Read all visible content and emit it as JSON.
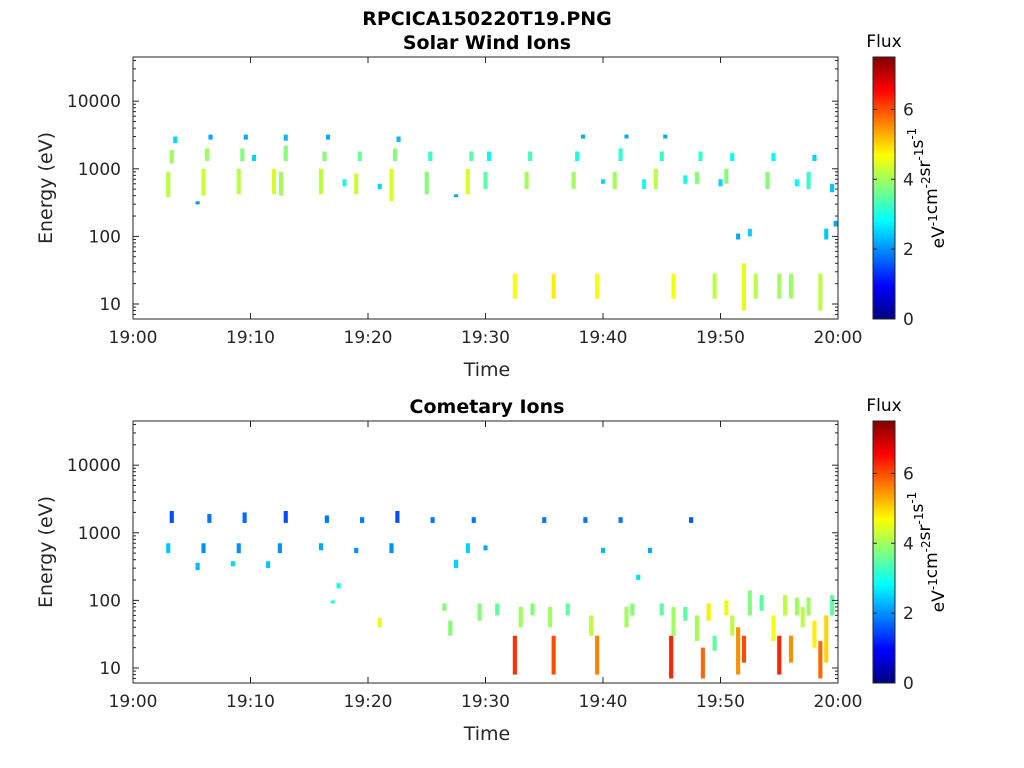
{
  "figure": {
    "title": "RPCICA150220T19.PNG"
  },
  "colormap": [
    "#00007f",
    "#0000ff",
    "#007fff",
    "#00ffff",
    "#7fff7f",
    "#ffff00",
    "#ff7f00",
    "#ff0000",
    "#7f0000"
  ],
  "chart_data": [
    {
      "type": "heatmap",
      "title": "Solar Wind Ions",
      "xlabel": "Time",
      "ylabel": "Energy (eV)",
      "yscale": "log",
      "ylim": [
        6,
        45000
      ],
      "xlim": [
        "19:00",
        "20:00"
      ],
      "x_ticks": [
        "19:00",
        "19:10",
        "19:20",
        "19:30",
        "19:40",
        "19:50",
        "20:00"
      ],
      "y_ticks": [
        "10",
        "100",
        "1000",
        "10000"
      ],
      "colorbar": {
        "title": "Flux",
        "label": "eV-1cm-2sr-1s-1",
        "range": [
          0,
          7.5
        ],
        "ticks": [
          "0",
          "2",
          "4",
          "6"
        ]
      },
      "cells": [
        {
          "t": 3.0,
          "e": [
            380,
            900
          ],
          "f": 4.2
        },
        {
          "t": 3.3,
          "e": [
            1200,
            1900
          ],
          "f": 4.0
        },
        {
          "t": 3.6,
          "e": [
            2400,
            3000
          ],
          "f": 2.5
        },
        {
          "t": 5.5,
          "e": [
            300,
            330
          ],
          "f": 2.0
        },
        {
          "t": 6.0,
          "e": [
            400,
            1000
          ],
          "f": 4.3
        },
        {
          "t": 6.3,
          "e": [
            1300,
            2000
          ],
          "f": 4.0
        },
        {
          "t": 6.6,
          "e": [
            2700,
            3200
          ],
          "f": 2.2
        },
        {
          "t": 9.0,
          "e": [
            420,
            1000
          ],
          "f": 4.2
        },
        {
          "t": 9.3,
          "e": [
            1300,
            2000
          ],
          "f": 3.8
        },
        {
          "t": 9.6,
          "e": [
            2700,
            3200
          ],
          "f": 2.2
        },
        {
          "t": 10.3,
          "e": [
            1300,
            1600
          ],
          "f": 2.5
        },
        {
          "t": 12.0,
          "e": [
            420,
            1000
          ],
          "f": 4.4
        },
        {
          "t": 12.6,
          "e": [
            400,
            900
          ],
          "f": 4.0
        },
        {
          "t": 13.0,
          "e": [
            1300,
            2200
          ],
          "f": 3.8
        },
        {
          "t": 13.0,
          "e": [
            2600,
            3200
          ],
          "f": 2.3
        },
        {
          "t": 16.0,
          "e": [
            420,
            1000
          ],
          "f": 4.2
        },
        {
          "t": 16.3,
          "e": [
            1300,
            1800
          ],
          "f": 3.8
        },
        {
          "t": 16.6,
          "e": [
            2700,
            3200
          ],
          "f": 2.2
        },
        {
          "t": 18.0,
          "e": [
            550,
            700
          ],
          "f": 3.0
        },
        {
          "t": 19.0,
          "e": [
            420,
            850
          ],
          "f": 4.3
        },
        {
          "t": 19.3,
          "e": [
            1300,
            1800
          ],
          "f": 3.6
        },
        {
          "t": 21.0,
          "e": [
            500,
            600
          ],
          "f": 2.5
        },
        {
          "t": 22.0,
          "e": [
            330,
            1000
          ],
          "f": 4.4
        },
        {
          "t": 22.3,
          "e": [
            1300,
            2000
          ],
          "f": 3.8
        },
        {
          "t": 22.6,
          "e": [
            2500,
            3000
          ],
          "f": 2.3
        },
        {
          "t": 25.0,
          "e": [
            420,
            900
          ],
          "f": 3.8
        },
        {
          "t": 25.3,
          "e": [
            1300,
            1800
          ],
          "f": 3.2
        },
        {
          "t": 27.5,
          "e": [
            380,
            420
          ],
          "f": 2.2
        },
        {
          "t": 28.5,
          "e": [
            420,
            1000
          ],
          "f": 4.4
        },
        {
          "t": 28.8,
          "e": [
            1300,
            1800
          ],
          "f": 3.5
        },
        {
          "t": 30.0,
          "e": [
            500,
            900
          ],
          "f": 3.5
        },
        {
          "t": 30.3,
          "e": [
            1300,
            1800
          ],
          "f": 2.8
        },
        {
          "t": 32.5,
          "e": [
            12,
            28
          ],
          "f": 4.6
        },
        {
          "t": 33.5,
          "e": [
            500,
            900
          ],
          "f": 4.0
        },
        {
          "t": 33.8,
          "e": [
            1300,
            1800
          ],
          "f": 3.3
        },
        {
          "t": 35.8,
          "e": [
            12,
            28
          ],
          "f": 4.8
        },
        {
          "t": 37.5,
          "e": [
            500,
            900
          ],
          "f": 4.0
        },
        {
          "t": 37.8,
          "e": [
            1300,
            1800
          ],
          "f": 3.0
        },
        {
          "t": 38.3,
          "e": [
            2800,
            3200
          ],
          "f": 2.2
        },
        {
          "t": 39.5,
          "e": [
            12,
            28
          ],
          "f": 4.6
        },
        {
          "t": 40.0,
          "e": [
            600,
            700
          ],
          "f": 2.5
        },
        {
          "t": 41.0,
          "e": [
            500,
            900
          ],
          "f": 4.0
        },
        {
          "t": 41.5,
          "e": [
            1300,
            2000
          ],
          "f": 3.2
        },
        {
          "t": 42.0,
          "e": [
            2800,
            3200
          ],
          "f": 2.2
        },
        {
          "t": 43.5,
          "e": [
            500,
            700
          ],
          "f": 3.0
        },
        {
          "t": 44.5,
          "e": [
            500,
            1000
          ],
          "f": 4.2
        },
        {
          "t": 45.0,
          "e": [
            1300,
            1800
          ],
          "f": 3.2
        },
        {
          "t": 45.3,
          "e": [
            2800,
            3200
          ],
          "f": 2.2
        },
        {
          "t": 46.0,
          "e": [
            12,
            28
          ],
          "f": 4.6
        },
        {
          "t": 47.0,
          "e": [
            600,
            800
          ],
          "f": 3.0
        },
        {
          "t": 48.0,
          "e": [
            600,
            900
          ],
          "f": 3.8
        },
        {
          "t": 48.3,
          "e": [
            1300,
            1800
          ],
          "f": 3.2
        },
        {
          "t": 49.5,
          "e": [
            12,
            28
          ],
          "f": 4.2
        },
        {
          "t": 50.0,
          "e": [
            550,
            700
          ],
          "f": 2.5
        },
        {
          "t": 50.5,
          "e": [
            600,
            1000
          ],
          "f": 3.8
        },
        {
          "t": 51.0,
          "e": [
            1300,
            1700
          ],
          "f": 2.8
        },
        {
          "t": 51.5,
          "e": [
            90,
            110
          ],
          "f": 2.2
        },
        {
          "t": 52.0,
          "e": [
            8,
            40
          ],
          "f": 4.5
        },
        {
          "t": 52.5,
          "e": [
            100,
            130
          ],
          "f": 2.5
        },
        {
          "t": 53.0,
          "e": [
            12,
            28
          ],
          "f": 4.2
        },
        {
          "t": 54.0,
          "e": [
            500,
            900
          ],
          "f": 3.8
        },
        {
          "t": 54.5,
          "e": [
            1300,
            1700
          ],
          "f": 2.8
        },
        {
          "t": 55.0,
          "e": [
            12,
            28
          ],
          "f": 4.0
        },
        {
          "t": 56.0,
          "e": [
            12,
            28
          ],
          "f": 4.0
        },
        {
          "t": 56.5,
          "e": [
            550,
            700
          ],
          "f": 2.8
        },
        {
          "t": 57.5,
          "e": [
            500,
            900
          ],
          "f": 3.2
        },
        {
          "t": 58.0,
          "e": [
            1300,
            1600
          ],
          "f": 2.5
        },
        {
          "t": 58.5,
          "e": [
            8,
            28
          ],
          "f": 4.2
        },
        {
          "t": 59.0,
          "e": [
            90,
            130
          ],
          "f": 2.4
        },
        {
          "t": 59.5,
          "e": [
            450,
            600
          ],
          "f": 2.4
        },
        {
          "t": 59.8,
          "e": [
            140,
            170
          ],
          "f": 2.2
        }
      ]
    },
    {
      "type": "heatmap",
      "title": "Cometary Ions",
      "xlabel": "Time",
      "ylabel": "Energy (eV)",
      "yscale": "log",
      "ylim": [
        6,
        45000
      ],
      "xlim": [
        "19:00",
        "20:00"
      ],
      "x_ticks": [
        "19:00",
        "19:10",
        "19:20",
        "19:30",
        "19:40",
        "19:50",
        "20:00"
      ],
      "y_ticks": [
        "10",
        "100",
        "1000",
        "10000"
      ],
      "colorbar": {
        "title": "Flux",
        "label": "eV-1cm-2sr-1s-1",
        "range": [
          0,
          7.5
        ],
        "ticks": [
          "0",
          "2",
          "4",
          "6"
        ]
      },
      "cells": [
        {
          "t": 3.0,
          "e": [
            500,
            700
          ],
          "f": 2.4
        },
        {
          "t": 3.3,
          "e": [
            1400,
            2100
          ],
          "f": 1.5
        },
        {
          "t": 5.5,
          "e": [
            280,
            360
          ],
          "f": 2.3
        },
        {
          "t": 6.0,
          "e": [
            500,
            700
          ],
          "f": 2.0
        },
        {
          "t": 6.5,
          "e": [
            1400,
            1900
          ],
          "f": 1.8
        },
        {
          "t": 8.5,
          "e": [
            320,
            380
          ],
          "f": 2.5
        },
        {
          "t": 9.0,
          "e": [
            500,
            700
          ],
          "f": 2.0
        },
        {
          "t": 9.5,
          "e": [
            1400,
            2000
          ],
          "f": 1.7
        },
        {
          "t": 11.5,
          "e": [
            300,
            380
          ],
          "f": 2.4
        },
        {
          "t": 12.5,
          "e": [
            500,
            700
          ],
          "f": 2.0
        },
        {
          "t": 13.0,
          "e": [
            1400,
            2100
          ],
          "f": 1.5
        },
        {
          "t": 16.0,
          "e": [
            550,
            700
          ],
          "f": 2.2
        },
        {
          "t": 16.5,
          "e": [
            1400,
            1800
          ],
          "f": 1.8
        },
        {
          "t": 17.5,
          "e": [
            150,
            180
          ],
          "f": 3.0
        },
        {
          "t": 17.0,
          "e": [
            90,
            100
          ],
          "f": 3.0
        },
        {
          "t": 19.0,
          "e": [
            500,
            600
          ],
          "f": 2.0
        },
        {
          "t": 19.5,
          "e": [
            1400,
            1700
          ],
          "f": 1.8
        },
        {
          "t": 21.0,
          "e": [
            40,
            55
          ],
          "f": 4.5
        },
        {
          "t": 22.0,
          "e": [
            500,
            700
          ],
          "f": 2.0
        },
        {
          "t": 22.5,
          "e": [
            1400,
            2100
          ],
          "f": 1.5
        },
        {
          "t": 25.5,
          "e": [
            1400,
            1700
          ],
          "f": 1.8
        },
        {
          "t": 27.5,
          "e": [
            300,
            400
          ],
          "f": 2.5
        },
        {
          "t": 28.5,
          "e": [
            500,
            700
          ],
          "f": 2.5
        },
        {
          "t": 29.0,
          "e": [
            1400,
            1700
          ],
          "f": 1.8
        },
        {
          "t": 30.0,
          "e": [
            550,
            650
          ],
          "f": 2.2
        },
        {
          "t": 26.5,
          "e": [
            70,
            90
          ],
          "f": 3.8
        },
        {
          "t": 27.0,
          "e": [
            30,
            50
          ],
          "f": 3.8
        },
        {
          "t": 29.5,
          "e": [
            50,
            90
          ],
          "f": 3.8
        },
        {
          "t": 31.0,
          "e": [
            60,
            90
          ],
          "f": 3.5
        },
        {
          "t": 32.5,
          "e": [
            8,
            30
          ],
          "f": 6.2
        },
        {
          "t": 33.0,
          "e": [
            40,
            80
          ],
          "f": 4.0
        },
        {
          "t": 34.0,
          "e": [
            60,
            90
          ],
          "f": 3.8
        },
        {
          "t": 35.0,
          "e": [
            1400,
            1700
          ],
          "f": 1.8
        },
        {
          "t": 35.8,
          "e": [
            8,
            30
          ],
          "f": 6.0
        },
        {
          "t": 35.5,
          "e": [
            40,
            80
          ],
          "f": 4.0
        },
        {
          "t": 37.0,
          "e": [
            60,
            90
          ],
          "f": 3.5
        },
        {
          "t": 38.5,
          "e": [
            1400,
            1700
          ],
          "f": 1.8
        },
        {
          "t": 39.5,
          "e": [
            8,
            30
          ],
          "f": 5.6
        },
        {
          "t": 39.0,
          "e": [
            30,
            60
          ],
          "f": 4.2
        },
        {
          "t": 40.0,
          "e": [
            500,
            600
          ],
          "f": 2.3
        },
        {
          "t": 41.5,
          "e": [
            1400,
            1700
          ],
          "f": 1.8
        },
        {
          "t": 42.0,
          "e": [
            40,
            80
          ],
          "f": 4.0
        },
        {
          "t": 42.5,
          "e": [
            60,
            90
          ],
          "f": 3.8
        },
        {
          "t": 43.0,
          "e": [
            200,
            240
          ],
          "f": 2.6
        },
        {
          "t": 44.0,
          "e": [
            500,
            600
          ],
          "f": 2.2
        },
        {
          "t": 45.0,
          "e": [
            60,
            90
          ],
          "f": 3.5
        },
        {
          "t": 45.8,
          "e": [
            7,
            30
          ],
          "f": 6.3
        },
        {
          "t": 46.0,
          "e": [
            30,
            80
          ],
          "f": 4.0
        },
        {
          "t": 47.0,
          "e": [
            50,
            80
          ],
          "f": 3.5
        },
        {
          "t": 47.5,
          "e": [
            1400,
            1700
          ],
          "f": 1.6
        },
        {
          "t": 48.0,
          "e": [
            25,
            60
          ],
          "f": 4.0
        },
        {
          "t": 48.5,
          "e": [
            7,
            20
          ],
          "f": 5.8
        },
        {
          "t": 49.0,
          "e": [
            50,
            90
          ],
          "f": 4.8
        },
        {
          "t": 49.5,
          "e": [
            18,
            30
          ],
          "f": 3.5
        },
        {
          "t": 50.5,
          "e": [
            60,
            100
          ],
          "f": 4.5
        },
        {
          "t": 51.0,
          "e": [
            30,
            60
          ],
          "f": 4.2
        },
        {
          "t": 51.5,
          "e": [
            8,
            40
          ],
          "f": 5.5
        },
        {
          "t": 52.0,
          "e": [
            12,
            30
          ],
          "f": 6.0
        },
        {
          "t": 52.5,
          "e": [
            60,
            140
          ],
          "f": 3.8
        },
        {
          "t": 53.5,
          "e": [
            70,
            120
          ],
          "f": 3.5
        },
        {
          "t": 54.5,
          "e": [
            25,
            60
          ],
          "f": 4.6
        },
        {
          "t": 55.0,
          "e": [
            8,
            30
          ],
          "f": 6.3
        },
        {
          "t": 55.5,
          "e": [
            60,
            120
          ],
          "f": 4.2
        },
        {
          "t": 56.0,
          "e": [
            12,
            30
          ],
          "f": 5.5
        },
        {
          "t": 56.5,
          "e": [
            60,
            110
          ],
          "f": 4.0
        },
        {
          "t": 57.0,
          "e": [
            40,
            80
          ],
          "f": 4.2
        },
        {
          "t": 57.5,
          "e": [
            60,
            110
          ],
          "f": 4.0
        },
        {
          "t": 58.0,
          "e": [
            20,
            50
          ],
          "f": 4.8
        },
        {
          "t": 58.5,
          "e": [
            7,
            25
          ],
          "f": 5.8
        },
        {
          "t": 59.0,
          "e": [
            12,
            60
          ],
          "f": 5.0
        },
        {
          "t": 59.5,
          "e": [
            60,
            120
          ],
          "f": 3.5
        }
      ]
    }
  ]
}
